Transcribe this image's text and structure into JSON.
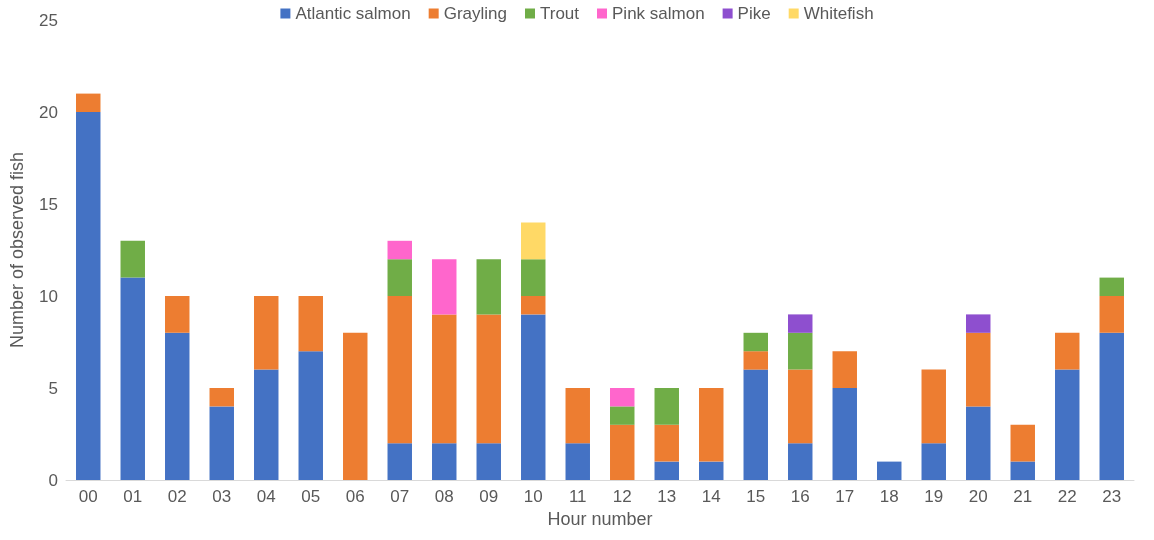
{
  "chart_data": {
    "type": "bar",
    "stacked": true,
    "xlabel": "Hour number",
    "ylabel": "Number of observed fish",
    "categories": [
      "00",
      "01",
      "02",
      "03",
      "04",
      "05",
      "06",
      "07",
      "08",
      "09",
      "10",
      "11",
      "12",
      "13",
      "14",
      "15",
      "16",
      "17",
      "18",
      "19",
      "20",
      "21",
      "22",
      "23"
    ],
    "series": [
      {
        "name": "Atlantic salmon",
        "color": "#4472c4",
        "values": [
          20,
          11,
          8,
          4,
          6,
          7,
          0,
          2,
          2,
          2,
          9,
          2,
          0,
          1,
          1,
          6,
          2,
          5,
          1,
          2,
          4,
          1,
          6,
          8
        ]
      },
      {
        "name": "Grayling",
        "color": "#ed7d31",
        "values": [
          1,
          0,
          2,
          1,
          4,
          3,
          8,
          8,
          7,
          7,
          1,
          3,
          3,
          2,
          4,
          1,
          4,
          2,
          0,
          4,
          4,
          2,
          2,
          2
        ]
      },
      {
        "name": "Trout",
        "color": "#70ad47",
        "values": [
          0,
          2,
          0,
          0,
          0,
          0,
          0,
          2,
          0,
          3,
          2,
          0,
          1,
          2,
          0,
          1,
          2,
          0,
          0,
          0,
          0,
          0,
          0,
          1
        ]
      },
      {
        "name": "Pink salmon",
        "color": "#ff66cc",
        "values": [
          0,
          0,
          0,
          0,
          0,
          0,
          0,
          1,
          3,
          0,
          0,
          0,
          1,
          0,
          0,
          0,
          0,
          0,
          0,
          0,
          0,
          0,
          0,
          0
        ]
      },
      {
        "name": "Pike",
        "color": "#8e4fcf",
        "values": [
          0,
          0,
          0,
          0,
          0,
          0,
          0,
          0,
          0,
          0,
          0,
          0,
          0,
          0,
          0,
          0,
          1,
          0,
          0,
          0,
          1,
          0,
          0,
          0
        ]
      },
      {
        "name": "Whitefish",
        "color": "#ffd966",
        "values": [
          0,
          0,
          0,
          0,
          0,
          0,
          0,
          0,
          0,
          0,
          2,
          0,
          0,
          0,
          0,
          0,
          0,
          0,
          0,
          0,
          0,
          0,
          0,
          0
        ]
      }
    ],
    "ylim": [
      0,
      25
    ],
    "yticks": [
      0,
      5,
      10,
      15,
      20,
      25
    ],
    "grid": false,
    "legend": "top"
  }
}
